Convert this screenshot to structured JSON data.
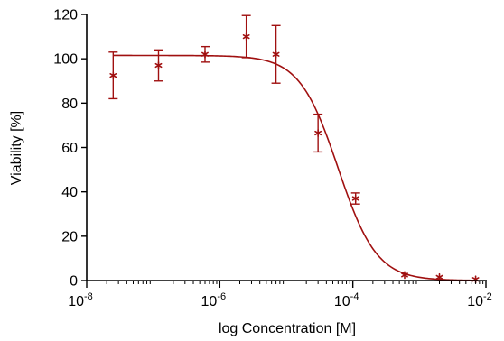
{
  "chart_data": {
    "type": "scatter",
    "xlabel": "log Concentration [M]",
    "ylabel": "Viability [%]",
    "x_scale": "log",
    "xlim": [
      1e-08,
      0.01
    ],
    "ylim": [
      0,
      120
    ],
    "grid": false,
    "legend": "none",
    "colors": {
      "series": "#a01010",
      "axis": "#000000"
    },
    "x_ticks": [
      {
        "base": "10",
        "exp": "-8",
        "value": 1e-08
      },
      {
        "base": "10",
        "exp": "-6",
        "value": 1e-06
      },
      {
        "base": "10",
        "exp": "-4",
        "value": 0.0001
      },
      {
        "base": "10",
        "exp": "-2",
        "value": 0.01
      }
    ],
    "y_ticks": [
      "0",
      "20",
      "40",
      "60",
      "80",
      "100",
      "120"
    ],
    "series": [
      {
        "marker": "asterisk",
        "points": [
          {
            "x": 2.5e-08,
            "y": 92.5,
            "err": 10.5
          },
          {
            "x": 1.2e-07,
            "y": 97,
            "err": 7
          },
          {
            "x": 6e-07,
            "y": 102,
            "err": 3.5
          },
          {
            "x": 2.5e-06,
            "y": 110,
            "err": 9.5
          },
          {
            "x": 7e-06,
            "y": 102,
            "err": 13
          },
          {
            "x": 3e-05,
            "y": 66.5,
            "err": 8.5
          },
          {
            "x": 0.00011,
            "y": 37,
            "err": 2.5
          },
          {
            "x": 0.0006,
            "y": 2.5,
            "err": 0
          },
          {
            "x": 0.002,
            "y": 1.5,
            "err": 0
          },
          {
            "x": 0.007,
            "y": 0.5,
            "err": 0
          }
        ]
      }
    ],
    "fit_curve": {
      "top": 101.5,
      "bottom": 0,
      "ic50": 6e-05,
      "hill": 1.5
    }
  }
}
